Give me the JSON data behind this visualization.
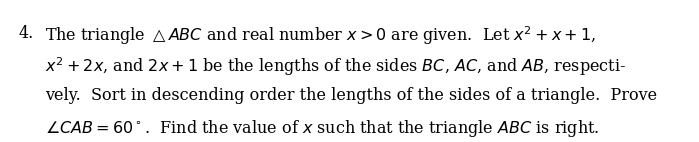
{
  "number": "4.",
  "line1": "The triangle $\\triangle ABC$ and real number $x > 0$ are given.  Let $x^2 + x + 1$,",
  "line2": "$x^2 + 2x$, and $2x+1$ be the lengths of the sides $BC$, $AC$, and $AB$, respecti-",
  "line3": "vely.  Sort in descending order the lengths of the sides of a triangle.  Prove",
  "line4": "$\\angle CAB = 60^\\circ$.  Find the value of $x$ such that the triangle $ABC$ is right.",
  "bg_color": "#ffffff",
  "text_color": "#000000",
  "fontsize": 11.5,
  "number_fontsize": 11.5,
  "figwidth": 6.99,
  "figheight": 1.42,
  "dpi": 100
}
